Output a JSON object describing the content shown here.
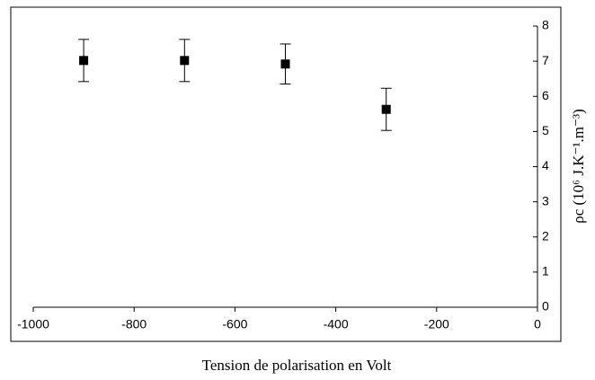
{
  "chart_data": {
    "type": "scatter",
    "xlabel": "Tension de polarisation en Volt",
    "ylabel": "ρc (10⁶ J.K⁻¹.m⁻³)",
    "x": [
      -900,
      -700,
      -500,
      -300
    ],
    "y": [
      7.02,
      7.02,
      6.92,
      5.63
    ],
    "error": [
      0.6,
      0.6,
      0.57,
      0.6
    ],
    "color": "#000000",
    "xlim": [
      -1000,
      0
    ],
    "xticks": [
      -1000,
      -800,
      -600,
      -400,
      -200,
      0
    ],
    "ylim": [
      0,
      8
    ],
    "yticks": [
      0,
      1,
      2,
      3,
      4,
      5,
      6,
      7,
      8
    ],
    "yaxis_side": "right"
  }
}
